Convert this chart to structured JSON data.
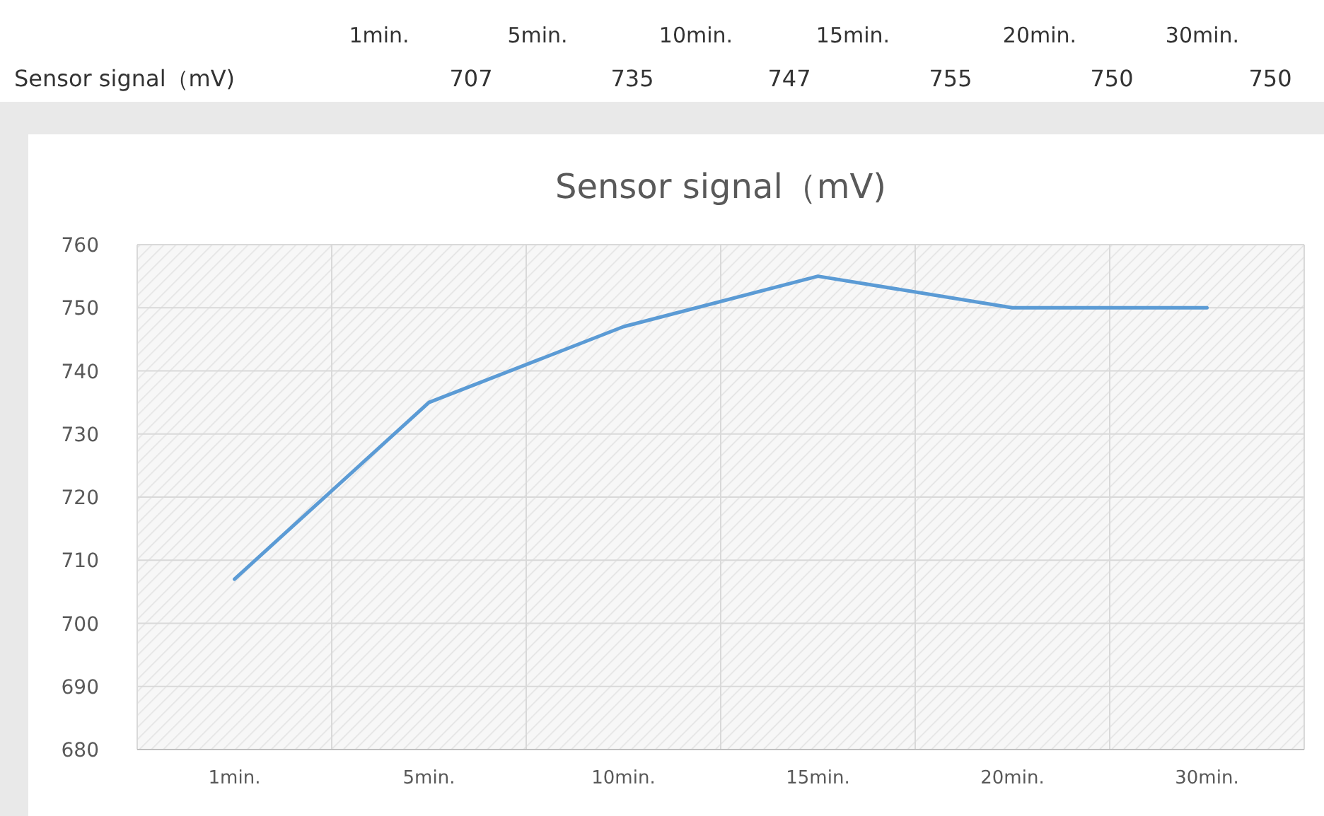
{
  "chart_data": {
    "type": "line",
    "title": "Sensor signal（mV)",
    "categories": [
      "1min.",
      "5min.",
      "10min.",
      "15min.",
      "20min.",
      "30min."
    ],
    "series": [
      {
        "name": "Sensor signal（mV)",
        "color": "#5b9bd5",
        "values": [
          707,
          735,
          747,
          755,
          750,
          750
        ]
      }
    ],
    "ylim": [
      680,
      760
    ],
    "yticks": [
      680,
      690,
      700,
      710,
      720,
      730,
      740,
      750,
      760
    ],
    "grid": true,
    "marker": "none",
    "line_style": "solid",
    "annotations": [
      "707",
      "735",
      "747",
      "755",
      "750",
      "750"
    ]
  }
}
